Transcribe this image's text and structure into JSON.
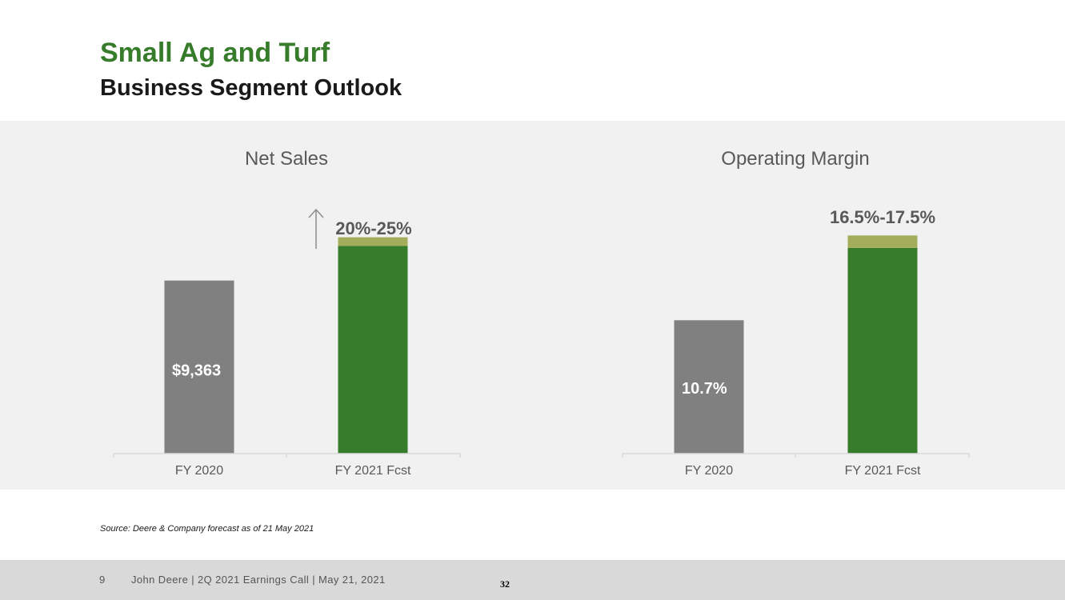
{
  "slide": {
    "title": "Small Ag and Turf",
    "subtitle": "Business Segment Outlook",
    "source": "Source: Deere & Company forecast as of 21 May 2021",
    "page_number": "9",
    "footer": "John Deere | 2Q 2021 Earnings Call | May 21, 2021",
    "stamp": "32"
  },
  "colors": {
    "brand_green": "#367c2b",
    "actual_gray": "#808080",
    "range_olive": "#a4ad5c"
  },
  "chart_data": [
    {
      "type": "bar",
      "title": "Net Sales",
      "categories": [
        "FY 2020",
        "FY 2021 Fcst"
      ],
      "series": [
        {
          "values": [
            9363,
            11236
          ],
          "labels": [
            "$9,363",
            ""
          ]
        },
        {
          "values": [
            0,
            468
          ]
        }
      ],
      "annotation": {
        "text": "20%-25%",
        "icon": "up-arrow-icon"
      },
      "ylim": [
        0,
        14500
      ]
    },
    {
      "type": "bar",
      "title": "Operating Margin",
      "categories": [
        "FY 2020",
        "FY 2021 Fcst"
      ],
      "series": [
        {
          "values": [
            10.7,
            16.5
          ],
          "labels": [
            "10.7%",
            ""
          ]
        },
        {
          "values": [
            0,
            1.0
          ]
        }
      ],
      "annotation": {
        "text": "16.5%-17.5%"
      },
      "ylim": [
        0,
        21.5
      ]
    }
  ]
}
